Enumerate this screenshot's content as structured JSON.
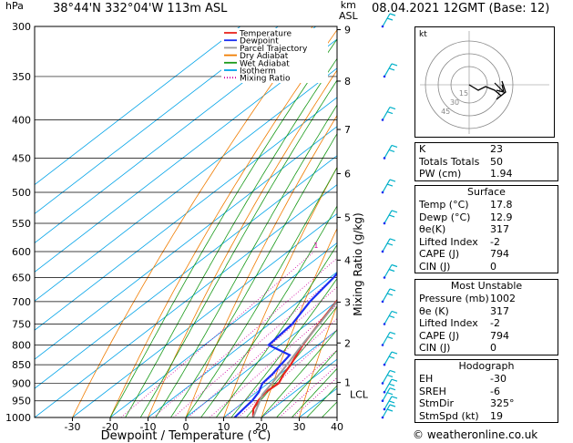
{
  "header": {
    "hpa_label": "hPa",
    "location": "38°44'N  332°04'W  113m  ASL",
    "date": "08.04.2021  12GMT  (Base: 12)",
    "km_label": "km",
    "asl_label": "ASL",
    "credit": "© weatheronline.co.uk"
  },
  "chart_data": {
    "type": "line",
    "title": "38°44'N  332°04'W  113m  ASL",
    "xlabel": "Dewpoint / Temperature (°C)",
    "ylabel": "hPa",
    "right_label": "Mixing Ratio (g/kg)",
    "x_ticks": [
      -30,
      -20,
      -10,
      0,
      10,
      20,
      30,
      40
    ],
    "pressure_ticks": [
      300,
      350,
      400,
      450,
      500,
      550,
      600,
      650,
      700,
      750,
      800,
      850,
      900,
      950,
      1000
    ],
    "ylim": [
      1000,
      300
    ],
    "km_ticks": [
      {
        "label": "9",
        "p": 303
      },
      {
        "label": "8",
        "p": 355
      },
      {
        "label": "7",
        "p": 412
      },
      {
        "label": "6",
        "p": 472
      },
      {
        "label": "5",
        "p": 540
      },
      {
        "label": "4",
        "p": 616
      },
      {
        "label": "3",
        "p": 701
      },
      {
        "label": "2",
        "p": 795
      },
      {
        "label": "1",
        "p": 898
      },
      {
        "label": "LCL",
        "p": 931
      }
    ],
    "mixing_ratio_labels": [
      "1",
      "2",
      "3",
      "4",
      "6",
      "8",
      "10",
      "15",
      "20",
      "25"
    ],
    "legend": [
      {
        "name": "Temperature",
        "color": "#e8251e"
      },
      {
        "name": "Dewpoint",
        "color": "#1a2ef2"
      },
      {
        "name": "Parcel Trajectory",
        "color": "#9b9b9b"
      },
      {
        "name": "Dry Adiabat",
        "color": "#f07c00"
      },
      {
        "name": "Wet Adiabat",
        "color": "#1a9a1a"
      },
      {
        "name": "Isotherm",
        "color": "#00a3e8"
      },
      {
        "name": "Mixing Ratio",
        "color": "#d200a0"
      }
    ],
    "legend_position": "top-left",
    "series": [
      {
        "name": "Temperature",
        "color": "#e8251e",
        "points": [
          [
            1000,
            17.8
          ],
          [
            975,
            15.0
          ],
          [
            950,
            13.4
          ],
          [
            925,
            12.4
          ],
          [
            900,
            12.8
          ],
          [
            875,
            11.0
          ],
          [
            850,
            9.6
          ],
          [
            800,
            6.0
          ],
          [
            750,
            3.0
          ],
          [
            700,
            0.0
          ],
          [
            650,
            -4.0
          ],
          [
            600,
            -8.5
          ],
          [
            550,
            -13.0
          ],
          [
            500,
            -18.0
          ],
          [
            450,
            -24.0
          ],
          [
            400,
            -31.0
          ],
          [
            350,
            -38.0
          ],
          [
            300,
            -46.0
          ]
        ]
      },
      {
        "name": "Dewpoint",
        "color": "#1a2ef2",
        "points": [
          [
            1000,
            12.9
          ],
          [
            975,
            12.3
          ],
          [
            950,
            11.8
          ],
          [
            925,
            10.6
          ],
          [
            900,
            8.5
          ],
          [
            875,
            8.0
          ],
          [
            850,
            7.0
          ],
          [
            825,
            6.0
          ],
          [
            800,
            -3.0
          ],
          [
            750,
            -4.0
          ],
          [
            700,
            -7.0
          ],
          [
            650,
            -9.0
          ],
          [
            600,
            -12.0
          ],
          [
            550,
            -18.0
          ],
          [
            500,
            -21.0
          ],
          [
            450,
            -27.0
          ],
          [
            400,
            -33.0
          ],
          [
            350,
            -50.0
          ],
          [
            300,
            -54.0
          ]
        ]
      },
      {
        "name": "Parcel Trajectory",
        "color": "#9b9b9b",
        "points": [
          [
            1000,
            17.8
          ],
          [
            931,
            12.3
          ],
          [
            900,
            11.0
          ],
          [
            850,
            8.6
          ],
          [
            800,
            5.8
          ],
          [
            750,
            3.2
          ],
          [
            700,
            0.2
          ],
          [
            650,
            -3.0
          ],
          [
            600,
            -6.8
          ],
          [
            550,
            -11.0
          ],
          [
            500,
            -16.0
          ],
          [
            450,
            -21.5
          ],
          [
            400,
            -28.0
          ],
          [
            350,
            -36.0
          ],
          [
            300,
            -45.0
          ]
        ]
      }
    ],
    "hodograph": {
      "label": "kt",
      "ring_labels": [
        "45",
        "30",
        "15"
      ]
    }
  },
  "indices": {
    "rows": [
      {
        "name": "K",
        "value": "23"
      },
      {
        "name": "Totals Totals",
        "value": "50"
      },
      {
        "name": "PW (cm)",
        "value": "1.94"
      }
    ]
  },
  "surface": {
    "header": "Surface",
    "rows": [
      {
        "name": "Temp (°C)",
        "value": "17.8"
      },
      {
        "name": "Dewp (°C)",
        "value": "12.9"
      },
      {
        "name": "θe(K)",
        "value": "317"
      },
      {
        "name": "Lifted Index",
        "value": "-2"
      },
      {
        "name": "CAPE (J)",
        "value": "794"
      },
      {
        "name": "CIN (J)",
        "value": "0"
      }
    ]
  },
  "most_unstable": {
    "header": "Most Unstable",
    "rows": [
      {
        "name": "Pressure (mb)",
        "value": "1002"
      },
      {
        "name": "θe (K)",
        "value": "317"
      },
      {
        "name": "Lifted Index",
        "value": "-2"
      },
      {
        "name": "CAPE (J)",
        "value": "794"
      },
      {
        "name": "CIN (J)",
        "value": "0"
      }
    ]
  },
  "hodograph_table": {
    "header": "Hodograph",
    "rows": [
      {
        "name": "EH",
        "value": "-30"
      },
      {
        "name": "SREH",
        "value": "-6"
      },
      {
        "name": "StmDir",
        "value": "325°"
      },
      {
        "name": "StmSpd (kt)",
        "value": "19"
      }
    ]
  }
}
